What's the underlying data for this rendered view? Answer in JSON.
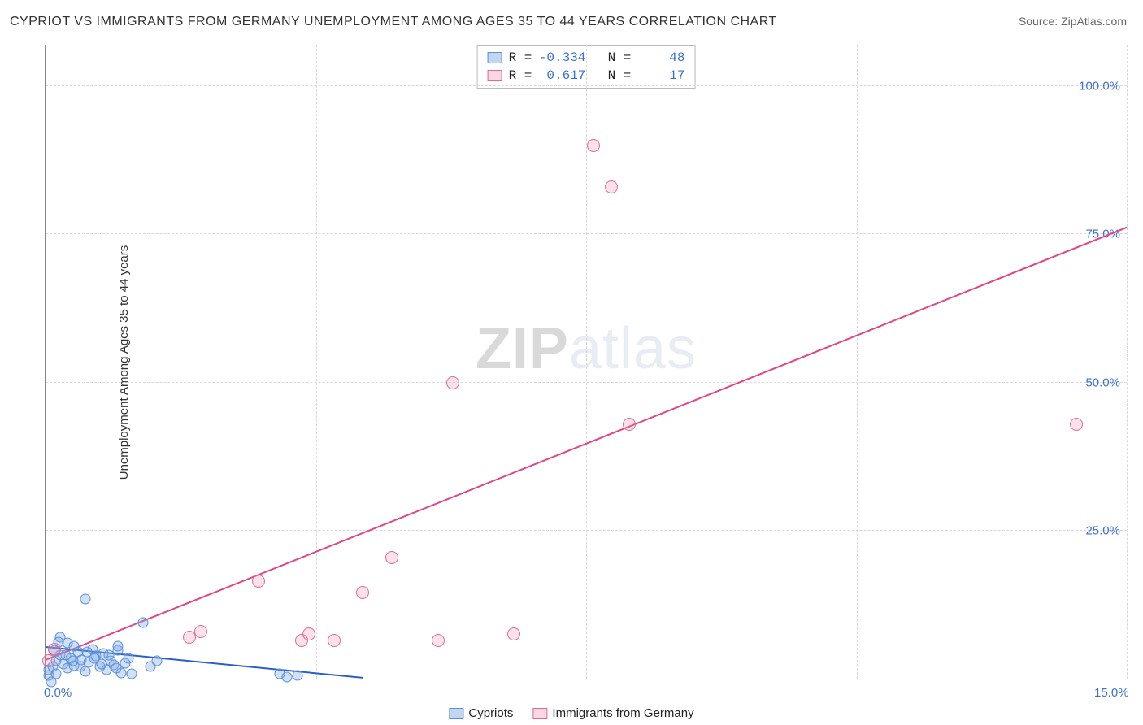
{
  "title": "CYPRIOT VS IMMIGRANTS FROM GERMANY UNEMPLOYMENT AMONG AGES 35 TO 44 YEARS CORRELATION CHART",
  "source_label": "Source: ZipAtlas.com",
  "ylabel": "Unemployment Among Ages 35 to 44 years",
  "watermark_a": "ZIP",
  "watermark_b": "atlas",
  "chart": {
    "type": "scatter",
    "xlim": [
      0,
      15
    ],
    "ylim": [
      0,
      107
    ],
    "xticks": [
      {
        "v": 0,
        "label": "0.0%"
      },
      {
        "v": 15,
        "label": "15.0%"
      }
    ],
    "yticks": [
      {
        "v": 25,
        "label": "25.0%"
      },
      {
        "v": 50,
        "label": "50.0%"
      },
      {
        "v": 75,
        "label": "75.0%"
      },
      {
        "v": 100,
        "label": "100.0%"
      }
    ],
    "vgrid": [
      3.75,
      7.5,
      11.25,
      15
    ],
    "hgrid": [
      25,
      50,
      75,
      100
    ],
    "background_color": "#ffffff",
    "grid_color": "#d8d8d8",
    "axis_color": "#888888",
    "tick_label_color": "#3b6fd6",
    "marker_size": 16,
    "marker_size_blue": 13,
    "series": [
      {
        "name": "Cypriots",
        "fill": "rgba(120,165,230,0.35)",
        "stroke": "#5b8fd6",
        "trend": {
          "x1": 0,
          "y1": 5.2,
          "x2": 4.4,
          "y2": 0,
          "color": "#2a5fc7",
          "width": 2
        },
        "stats": {
          "R": "-0.334",
          "N": "48"
        },
        "points": [
          [
            0.05,
            1.5
          ],
          [
            0.1,
            2.0
          ],
          [
            0.15,
            3.0
          ],
          [
            0.2,
            4.0
          ],
          [
            0.25,
            2.5
          ],
          [
            0.3,
            1.8
          ],
          [
            0.35,
            3.5
          ],
          [
            0.4,
            2.2
          ],
          [
            0.45,
            4.5
          ],
          [
            0.5,
            3.2
          ],
          [
            0.55,
            1.2
          ],
          [
            0.6,
            2.8
          ],
          [
            0.65,
            5.0
          ],
          [
            0.7,
            3.8
          ],
          [
            0.75,
            2.0
          ],
          [
            0.8,
            4.2
          ],
          [
            0.85,
            1.5
          ],
          [
            0.9,
            3.0
          ],
          [
            0.95,
            2.3
          ],
          [
            1.0,
            4.8
          ],
          [
            1.05,
            1.0
          ],
          [
            1.1,
            2.6
          ],
          [
            1.15,
            3.4
          ],
          [
            1.2,
            0.8
          ],
          [
            0.55,
            13.5
          ],
          [
            1.0,
            5.5
          ],
          [
            1.35,
            9.5
          ],
          [
            1.45,
            2.0
          ],
          [
            1.55,
            3.0
          ],
          [
            0.3,
            6.0
          ],
          [
            0.2,
            7.0
          ],
          [
            0.4,
            5.5
          ],
          [
            0.12,
            4.8
          ],
          [
            0.18,
            6.2
          ],
          [
            0.28,
            4.0
          ],
          [
            0.38,
            3.0
          ],
          [
            0.48,
            2.0
          ],
          [
            0.58,
            4.5
          ],
          [
            0.68,
            3.5
          ],
          [
            0.78,
            2.5
          ],
          [
            0.88,
            4.0
          ],
          [
            0.98,
            1.8
          ],
          [
            0.05,
            0.5
          ],
          [
            0.15,
            0.8
          ],
          [
            0.08,
            -0.5
          ],
          [
            3.25,
            0.8
          ],
          [
            3.35,
            0.3
          ],
          [
            3.5,
            0.5
          ]
        ]
      },
      {
        "name": "Immigrants from Germany",
        "fill": "rgba(240,140,170,0.25)",
        "stroke": "#e06a95",
        "trend": {
          "x1": 0,
          "y1": 3,
          "x2": 15,
          "y2": 76,
          "color": "#e24585",
          "width": 2
        },
        "stats": {
          "R": "0.617",
          "N": "17"
        },
        "points": [
          [
            0.05,
            3.0
          ],
          [
            0.12,
            5.0
          ],
          [
            2.0,
            7.0
          ],
          [
            2.15,
            8.0
          ],
          [
            2.95,
            16.5
          ],
          [
            3.55,
            6.5
          ],
          [
            3.65,
            7.5
          ],
          [
            4.0,
            6.5
          ],
          [
            4.4,
            14.5
          ],
          [
            4.8,
            20.5
          ],
          [
            5.45,
            6.5
          ],
          [
            5.65,
            50.0
          ],
          [
            6.5,
            7.5
          ],
          [
            7.6,
            90.0
          ],
          [
            7.85,
            83.0
          ],
          [
            8.1,
            43.0
          ],
          [
            14.3,
            43.0
          ]
        ]
      }
    ]
  },
  "legend": {
    "items": [
      {
        "label": "Cypriots",
        "fill": "rgba(120,165,230,0.45)",
        "stroke": "#5b8fd6"
      },
      {
        "label": "Immigrants from Germany",
        "fill": "rgba(240,140,170,0.35)",
        "stroke": "#e06a95"
      }
    ]
  }
}
